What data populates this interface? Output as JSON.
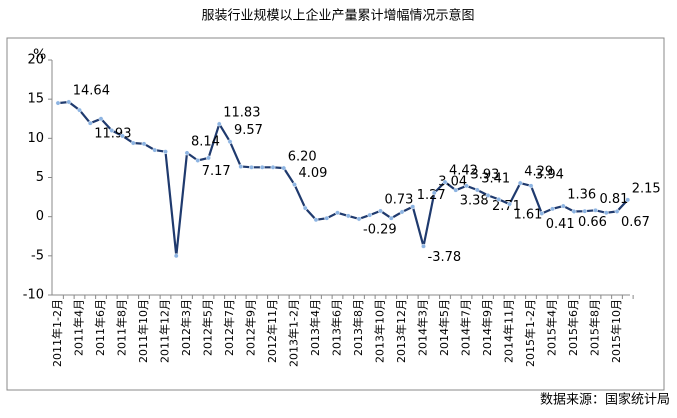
{
  "chart_data": {
    "type": "line",
    "title": "服装行业规模以上企业产量累计增幅情况示意图",
    "y_unit": "%",
    "source": "数据来源：国家统计局",
    "categories": [
      "2011年1-2月",
      null,
      "2011年4月",
      null,
      "2011年6月",
      null,
      "2011年8月",
      null,
      "2011年10月",
      null,
      "2011年12月",
      null,
      "2012年3月",
      null,
      "2012年5月",
      null,
      "2012年7月",
      null,
      "2012年9月",
      null,
      "2012年11月",
      null,
      "2013年1-2月",
      null,
      "2013年4月",
      null,
      "2013年6月",
      null,
      "2013年8月",
      null,
      "2013年10月",
      null,
      "2013年12月",
      null,
      "2014年3月",
      null,
      "2014年5月",
      null,
      "2014年7月",
      null,
      "2014年9月",
      null,
      "2014年11月",
      null,
      "2015年1-2月",
      null,
      "2015年4月",
      null,
      "2015年6月",
      null,
      "2015年8月",
      null,
      "2015年10月",
      null
    ],
    "values": [
      14.5,
      14.64,
      13.6,
      11.93,
      12.5,
      11,
      10.3,
      9.4,
      9.3,
      8.5,
      8.3,
      -5,
      8.14,
      7.17,
      7.5,
      11.83,
      9.57,
      6.4,
      6.3,
      6.3,
      6.3,
      6.2,
      4.09,
      1.1,
      -0.4,
      -0.2,
      0.5,
      0.1,
      -0.29,
      0.2,
      0.73,
      -0.2,
      0.6,
      1.27,
      -3.78,
      3.04,
      4.42,
      3.38,
      3.93,
      3.41,
      2.71,
      2.2,
      1.61,
      4.29,
      3.94,
      0.41,
      1,
      1.36,
      0.66,
      0.7,
      0.81,
      0.5,
      0.67,
      2.15
    ],
    "value_labels": [
      null,
      "14.64",
      null,
      "11.93",
      null,
      null,
      null,
      null,
      null,
      null,
      null,
      null,
      "8.14",
      "7.17",
      null,
      "11.83",
      "9.57",
      null,
      null,
      null,
      null,
      "6.20",
      "4.09",
      null,
      null,
      null,
      null,
      null,
      "-0.29",
      null,
      "0.73",
      null,
      null,
      "1.27",
      "-3.78",
      "3.04",
      "4.42",
      "3.38",
      "3.93",
      "3.41",
      "2.71",
      null,
      "1.61",
      "4.29",
      "3.94",
      "0.41",
      null,
      "1.36",
      "0.66",
      null,
      "0.81",
      null,
      "0.67",
      "2.15"
    ],
    "color": "#1f3a6e",
    "marker_color": "#8db4e2",
    "ylim": [
      -10,
      20
    ],
    "yticks": [
      -10,
      -5,
      0,
      5,
      10,
      15,
      20
    ],
    "grid": false
  }
}
